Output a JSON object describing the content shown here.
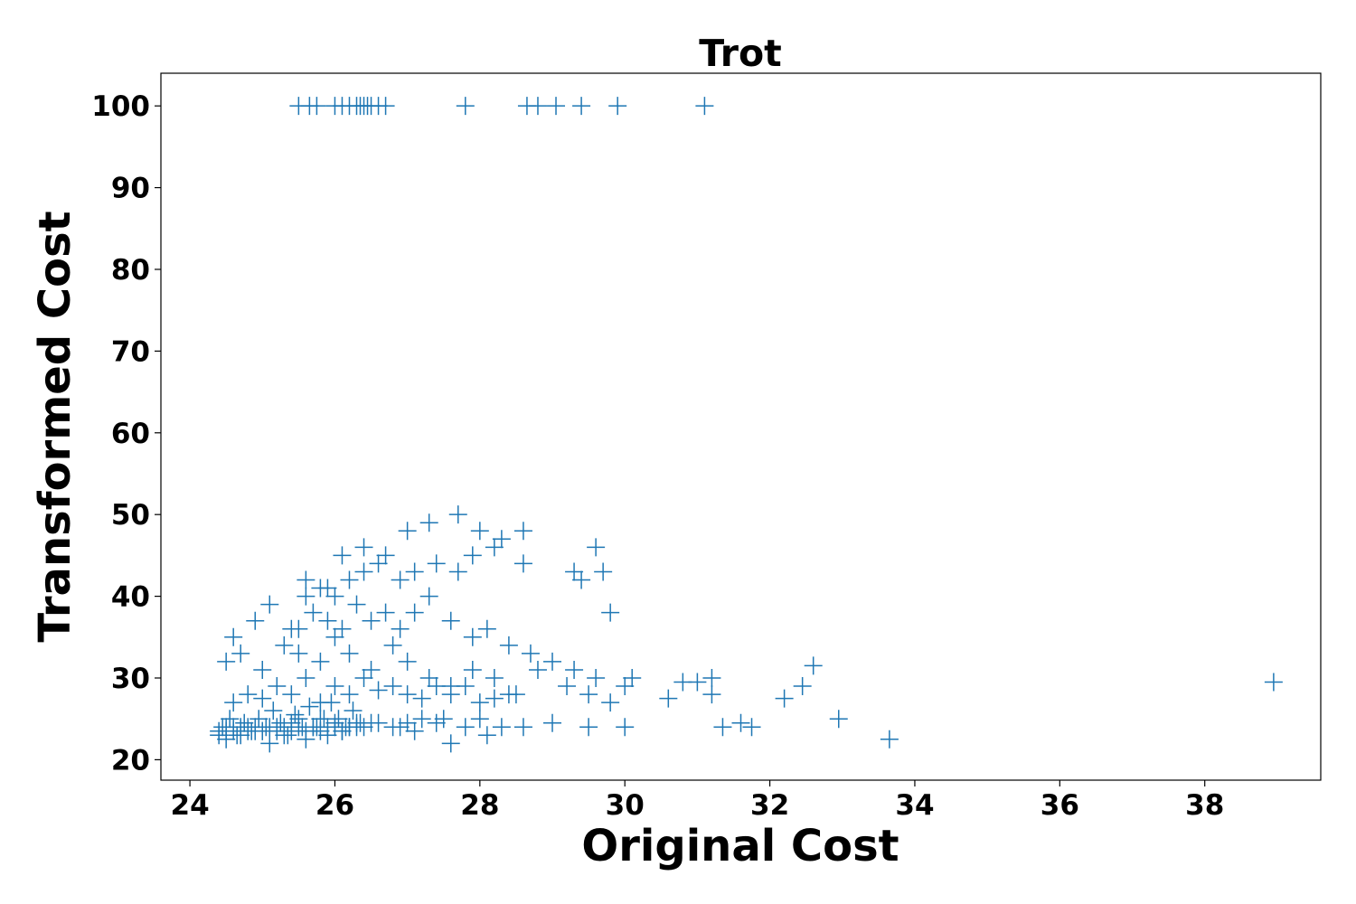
{
  "chart_data": {
    "type": "scatter",
    "title": "Trot",
    "xlabel": "Original Cost",
    "ylabel": "Transformed Cost",
    "xlim": [
      23.6,
      39.6
    ],
    "ylim": [
      17.5,
      104
    ],
    "xticks": [
      24,
      26,
      28,
      30,
      32,
      34,
      36,
      38
    ],
    "yticks": [
      20,
      30,
      40,
      50,
      60,
      70,
      80,
      90,
      100
    ],
    "grid": false,
    "legend": "none",
    "marker": "plus",
    "color": "#1f77b4",
    "series": [
      {
        "x": [
          25.5,
          25.65,
          25.75,
          26.0,
          26.1,
          26.2,
          26.3,
          26.35,
          26.4,
          26.45,
          26.5,
          26.6,
          26.7,
          27.8,
          28.65,
          28.8,
          29.05,
          29.4,
          29.9,
          31.1,
          24.4,
          24.5,
          24.6,
          24.8,
          25.0,
          25.2,
          25.4,
          25.5,
          25.7,
          25.8,
          26.0,
          26.2,
          26.4,
          26.6,
          26.8,
          27.0,
          27.2,
          27.5,
          27.8,
          28.0,
          24.5,
          24.7,
          24.9,
          25.1,
          25.3,
          25.6,
          25.9,
          26.1,
          26.3,
          26.5,
          26.9,
          27.1,
          27.4,
          27.6,
          28.1,
          28.3,
          28.6,
          29.0,
          29.5,
          30.0,
          24.45,
          24.55,
          24.65,
          24.75,
          24.85,
          24.95,
          25.05,
          25.15,
          25.25,
          25.35,
          25.45,
          25.55,
          25.65,
          25.75,
          25.85,
          25.95,
          26.05,
          26.15,
          26.25,
          26.35,
          24.6,
          24.8,
          25.0,
          25.2,
          25.4,
          25.6,
          25.8,
          26.0,
          26.2,
          26.4,
          26.6,
          26.8,
          27.0,
          27.2,
          27.4,
          27.6,
          27.8,
          28.0,
          28.2,
          28.4,
          24.5,
          24.7,
          25.0,
          25.3,
          25.5,
          25.8,
          26.0,
          26.2,
          26.5,
          26.8,
          27.0,
          27.3,
          27.6,
          27.9,
          28.2,
          28.5,
          28.8,
          29.2,
          29.5,
          29.8,
          25.5,
          25.7,
          25.9,
          26.1,
          26.3,
          26.5,
          26.7,
          26.9,
          27.1,
          27.3,
          27.6,
          27.9,
          28.1,
          28.4,
          28.7,
          29.0,
          29.3,
          29.6,
          30.0,
          30.1,
          25.6,
          25.8,
          26.0,
          26.2,
          26.4,
          26.6,
          26.9,
          27.1,
          27.4,
          27.7,
          27.9,
          28.2,
          28.6,
          29.3,
          29.7,
          29.6,
          29.8,
          24.6,
          24.9,
          25.1,
          25.4,
          25.6,
          25.9,
          26.1,
          26.4,
          26.7,
          27.0,
          27.3,
          27.7,
          28.0,
          28.3,
          28.6,
          29.4,
          30.6,
          30.8,
          31.0,
          31.2,
          31.2,
          31.35,
          31.6,
          31.75,
          32.2,
          32.45,
          32.6,
          32.95,
          33.65,
          38.95,
          24.4,
          24.5,
          24.6,
          24.7,
          24.8,
          24.9,
          25.0,
          25.1,
          25.2,
          25.3,
          25.4,
          25.5,
          25.6,
          25.7,
          25.8,
          25.9,
          26.0,
          26.1,
          26.2,
          26.3
        ],
        "y": [
          100,
          100,
          100,
          100,
          100,
          100,
          100,
          100,
          100,
          100,
          100,
          100,
          100,
          100,
          100,
          100,
          100,
          100,
          100,
          100,
          23,
          23.5,
          24,
          24,
          23.5,
          24,
          24.5,
          25,
          24,
          25,
          24.5,
          24,
          24,
          24.5,
          24,
          24.5,
          25,
          25,
          24,
          25,
          22.5,
          23,
          23.5,
          22,
          23,
          22.5,
          23,
          23.5,
          24,
          24.5,
          24,
          23.5,
          24.5,
          22,
          23,
          24,
          24,
          24.5,
          24,
          24,
          24,
          25,
          23,
          24.5,
          23.5,
          25,
          24,
          26,
          24.5,
          23,
          25.5,
          24,
          26.5,
          24,
          25,
          27,
          25,
          24,
          26,
          24.5,
          27,
          28,
          27.5,
          29,
          28,
          30,
          27,
          29,
          28,
          30,
          28.5,
          29,
          28,
          27.5,
          29,
          28,
          29,
          27,
          27.5,
          28,
          32,
          33,
          31,
          34,
          33,
          32,
          35,
          33,
          31,
          34,
          32,
          30,
          29,
          31,
          30,
          28,
          31,
          29,
          28,
          27,
          36,
          38,
          37,
          36,
          39,
          37,
          38,
          36,
          38,
          40,
          37,
          35,
          36,
          34,
          33,
          32,
          31,
          30,
          29,
          30,
          42,
          41,
          40,
          42,
          43,
          44,
          42,
          43,
          44,
          43,
          45,
          46,
          44,
          43,
          43,
          46,
          38,
          35,
          37,
          39,
          36,
          40,
          41,
          45,
          46,
          45,
          48,
          49,
          50,
          48,
          47,
          48,
          42,
          27.5,
          29.5,
          29.5,
          28,
          30,
          24,
          24.5,
          24,
          27.5,
          29,
          31.5,
          25,
          22.5,
          29.5,
          23.5,
          24,
          23.5,
          24,
          23.5,
          24,
          23.5,
          24,
          23.5,
          24,
          23.5,
          24,
          23.5,
          24,
          23.5,
          24,
          24,
          23.5,
          24,
          24.5
        ]
      }
    ]
  }
}
